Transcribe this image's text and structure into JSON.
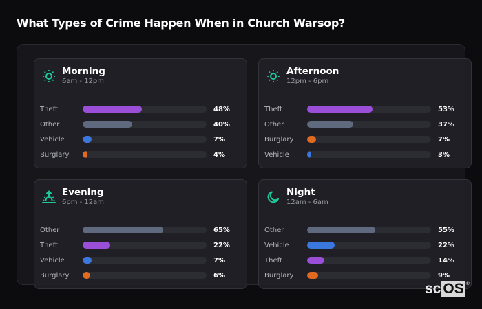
{
  "title": "What Types of Crime Happen When in Church Warsop?",
  "logo": {
    "text_a": "sc",
    "text_b": "OS",
    "reg": "®"
  },
  "colors": {
    "accent_icon": "#1fc79a",
    "Theft": "#9b4fd9",
    "Other": "#5f6a7e",
    "Vehicle": "#3a78dd",
    "Burglary": "#e06a20"
  },
  "cards": [
    {
      "title": "Morning",
      "subtitle": "6am - 12pm",
      "icon": "sun-icon",
      "rows": [
        {
          "label": "Theft",
          "value": 48,
          "display": "48%"
        },
        {
          "label": "Other",
          "value": 40,
          "display": "40%"
        },
        {
          "label": "Vehicle",
          "value": 7,
          "display": "7%"
        },
        {
          "label": "Burglary",
          "value": 4,
          "display": "4%"
        }
      ]
    },
    {
      "title": "Afternoon",
      "subtitle": "12pm - 6pm",
      "icon": "sun-icon",
      "rows": [
        {
          "label": "Theft",
          "value": 53,
          "display": "53%"
        },
        {
          "label": "Other",
          "value": 37,
          "display": "37%"
        },
        {
          "label": "Burglary",
          "value": 7,
          "display": "7%"
        },
        {
          "label": "Vehicle",
          "value": 3,
          "display": "3%"
        }
      ]
    },
    {
      "title": "Evening",
      "subtitle": "6pm - 12am",
      "icon": "sunset-icon",
      "rows": [
        {
          "label": "Other",
          "value": 65,
          "display": "65%"
        },
        {
          "label": "Theft",
          "value": 22,
          "display": "22%"
        },
        {
          "label": "Vehicle",
          "value": 7,
          "display": "7%"
        },
        {
          "label": "Burglary",
          "value": 6,
          "display": "6%"
        }
      ]
    },
    {
      "title": "Night",
      "subtitle": "12am - 6am",
      "icon": "moon-icon",
      "rows": [
        {
          "label": "Other",
          "value": 55,
          "display": "55%"
        },
        {
          "label": "Vehicle",
          "value": 22,
          "display": "22%"
        },
        {
          "label": "Theft",
          "value": 14,
          "display": "14%"
        },
        {
          "label": "Burglary",
          "value": 9,
          "display": "9%"
        }
      ]
    }
  ],
  "chart_data": [
    {
      "type": "bar",
      "title": "Morning",
      "subtitle": "6am - 12pm",
      "orientation": "horizontal",
      "categories": [
        "Theft",
        "Other",
        "Vehicle",
        "Burglary"
      ],
      "values": [
        48,
        40,
        7,
        4
      ],
      "unit": "%",
      "xlim": [
        0,
        100
      ],
      "grid": false,
      "legend": false
    },
    {
      "type": "bar",
      "title": "Afternoon",
      "subtitle": "12pm - 6pm",
      "orientation": "horizontal",
      "categories": [
        "Theft",
        "Other",
        "Burglary",
        "Vehicle"
      ],
      "values": [
        53,
        37,
        7,
        3
      ],
      "unit": "%",
      "xlim": [
        0,
        100
      ],
      "grid": false,
      "legend": false
    },
    {
      "type": "bar",
      "title": "Evening",
      "subtitle": "6pm - 12am",
      "orientation": "horizontal",
      "categories": [
        "Other",
        "Theft",
        "Vehicle",
        "Burglary"
      ],
      "values": [
        65,
        22,
        7,
        6
      ],
      "unit": "%",
      "xlim": [
        0,
        100
      ],
      "grid": false,
      "legend": false
    },
    {
      "type": "bar",
      "title": "Night",
      "subtitle": "12am - 6am",
      "orientation": "horizontal",
      "categories": [
        "Other",
        "Vehicle",
        "Theft",
        "Burglary"
      ],
      "values": [
        55,
        22,
        14,
        9
      ],
      "unit": "%",
      "xlim": [
        0,
        100
      ],
      "grid": false,
      "legend": false
    }
  ]
}
